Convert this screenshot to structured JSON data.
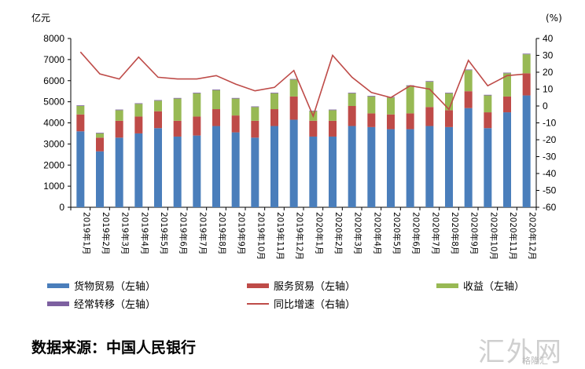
{
  "chart_data": {
    "type": "bar",
    "stacked": true,
    "y_left_unit": "亿元",
    "y_right_unit": "(%)",
    "y_left_ticks": [
      "0",
      "1000",
      "2000",
      "3000",
      "4000",
      "5000",
      "6000",
      "7000",
      "8000"
    ],
    "y_right_ticks": [
      "-60",
      "-50",
      "-40",
      "-30",
      "-20",
      "-10",
      "0",
      "10",
      "20",
      "30",
      "40"
    ],
    "ylim_left": [
      0,
      8000
    ],
    "ylim_right": [
      -60,
      40
    ],
    "categories": [
      "2019年1月",
      "2019年2月",
      "2019年3月",
      "2019年4月",
      "2019年5月",
      "2019年6月",
      "2019年7月",
      "2019年8月",
      "2019年9月",
      "2019年10月",
      "2019年11月",
      "2019年12月",
      "2020年1月",
      "2020年2月",
      "2020年3月",
      "2020年4月",
      "2020年5月",
      "2020年6月",
      "2020年7月",
      "2020年8月",
      "2020年9月",
      "2020年10月",
      "2020年11月",
      "2020年12月"
    ],
    "series": [
      {
        "name": "货物贸易（左轴）",
        "axis": "left",
        "kind": "bar",
        "color": "#4a7ebb",
        "values": [
          3600,
          2650,
          3300,
          3500,
          3750,
          3350,
          3400,
          3850,
          3550,
          3300,
          3850,
          4150,
          3350,
          3350,
          3850,
          3800,
          3700,
          3700,
          3850,
          3800,
          4700,
          3750,
          4500,
          5300
        ]
      },
      {
        "name": "服务贸易（左轴）",
        "axis": "left",
        "kind": "bar",
        "color": "#be4b48",
        "values": [
          800,
          650,
          800,
          800,
          800,
          750,
          900,
          800,
          800,
          800,
          800,
          1100,
          750,
          750,
          950,
          650,
          700,
          750,
          900,
          800,
          800,
          750,
          750,
          1050
        ]
      },
      {
        "name": "收益（左轴）",
        "axis": "left",
        "kind": "bar",
        "color": "#98b954",
        "values": [
          400,
          200,
          500,
          600,
          500,
          1050,
          1100,
          900,
          800,
          650,
          750,
          800,
          450,
          500,
          600,
          800,
          800,
          1300,
          1200,
          800,
          1000,
          800,
          1100,
          900
        ]
      },
      {
        "name": "经常转移（左轴）",
        "axis": "left",
        "kind": "bar",
        "color": "#7d60a0",
        "values": [
          30,
          30,
          30,
          30,
          30,
          30,
          30,
          30,
          30,
          30,
          30,
          30,
          30,
          30,
          30,
          30,
          30,
          30,
          30,
          30,
          30,
          30,
          30,
          30
        ]
      },
      {
        "name": "同比增速（右轴）",
        "axis": "right",
        "kind": "line",
        "color": "#be4b48",
        "values": [
          32,
          19,
          16,
          29,
          17,
          16,
          16,
          18,
          13,
          9,
          11,
          21,
          -6,
          30,
          17,
          8,
          5,
          12,
          10,
          -2,
          27,
          12,
          18,
          19
        ]
      }
    ]
  },
  "source_text": "数据来源：中国人民银行",
  "watermark": "汇外网",
  "watermark_small": "格隆汇"
}
